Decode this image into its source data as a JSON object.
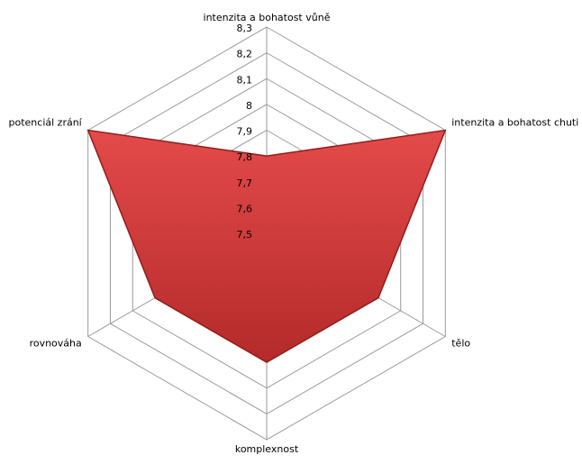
{
  "chart_data": {
    "type": "radar",
    "categories": [
      "intenzita a bohatost vůně",
      "intenzita a bohatost chuti",
      "tělo",
      "komplexnost",
      "rovnováha",
      "potenciál zrání"
    ],
    "values": [
      7.8,
      8.3,
      8.0,
      8.0,
      8.0,
      8.3
    ],
    "color": "#d63c3c",
    "rlim": [
      7.5,
      8.3
    ],
    "rticks": [
      {
        "value": 7.5,
        "label": "7,5"
      },
      {
        "value": 7.6,
        "label": "7,6"
      },
      {
        "value": 7.7,
        "label": "7,7"
      },
      {
        "value": 7.8,
        "label": "7,8"
      },
      {
        "value": 7.9,
        "label": "7,9"
      },
      {
        "value": 8,
        "label": "8"
      },
      {
        "value": 8.1,
        "label": "8,1"
      },
      {
        "value": 8.2,
        "label": "8,2"
      },
      {
        "value": 8.3,
        "label": "8,3"
      }
    ],
    "grid": true
  }
}
